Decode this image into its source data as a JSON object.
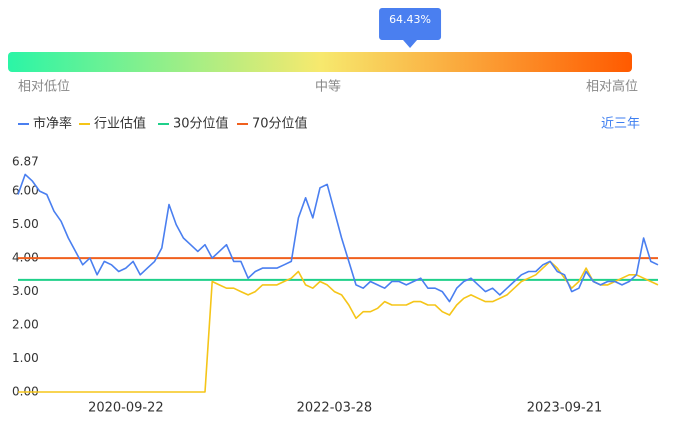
{
  "gauge": {
    "percentile": 64.43,
    "value_label": "64.43%",
    "colors": [
      "#2bf5a6",
      "#f7e96e",
      "#ff5a00"
    ],
    "marker_color": "#4a7ff0",
    "low_label": "相对低位",
    "mid_label": "中等",
    "high_label": "相对高位"
  },
  "chart_data": {
    "type": "line",
    "range_button": "近三年",
    "categories": [
      null,
      null,
      null,
      null,
      null,
      null,
      null,
      null,
      null,
      null,
      null,
      null,
      null,
      null,
      null,
      "2020-09-22",
      null,
      null,
      null,
      null,
      null,
      null,
      null,
      null,
      null,
      null,
      null,
      null,
      null,
      null,
      null,
      null,
      null,
      null,
      null,
      null,
      null,
      null,
      null,
      null,
      null,
      null,
      null,
      null,
      "2022-03-28",
      null,
      null,
      null,
      null,
      null,
      null,
      null,
      null,
      null,
      null,
      null,
      null,
      null,
      null,
      null,
      null,
      null,
      null,
      null,
      null,
      null,
      null,
      null,
      null,
      null,
      null,
      null,
      null,
      null,
      null,
      null,
      "2023-09-21",
      null,
      null,
      null,
      null,
      null,
      null,
      null,
      null,
      null,
      null,
      null,
      null,
      null
    ],
    "series": [
      {
        "name": "市净率",
        "color": "#4a7ff0",
        "values": [
          5.9,
          6.5,
          6.3,
          6.0,
          5.9,
          5.4,
          5.1,
          4.6,
          4.2,
          3.8,
          4.0,
          3.5,
          3.9,
          3.8,
          3.6,
          3.7,
          3.9,
          3.5,
          3.7,
          3.9,
          4.3,
          5.6,
          5.0,
          4.6,
          4.4,
          4.2,
          4.4,
          4.0,
          4.2,
          4.4,
          3.9,
          3.9,
          3.4,
          3.6,
          3.7,
          3.7,
          3.7,
          3.8,
          3.9,
          5.2,
          5.8,
          5.2,
          6.1,
          6.2,
          5.4,
          4.6,
          3.9,
          3.2,
          3.1,
          3.3,
          3.2,
          3.1,
          3.3,
          3.3,
          3.2,
          3.3,
          3.4,
          3.1,
          3.1,
          3.0,
          2.7,
          3.1,
          3.3,
          3.4,
          3.2,
          3.0,
          3.1,
          2.9,
          3.1,
          3.3,
          3.5,
          3.6,
          3.6,
          3.8,
          3.9,
          3.6,
          3.5,
          3.0,
          3.1,
          3.6,
          3.3,
          3.2,
          3.3,
          3.3,
          3.2,
          3.3,
          3.5,
          4.6,
          3.9,
          3.8
        ]
      },
      {
        "name": "行业估值",
        "color": "#f5c518",
        "values": [
          0,
          0,
          0,
          0,
          0,
          0,
          0,
          0,
          0,
          0,
          0,
          0,
          0,
          0,
          0,
          0,
          0,
          0,
          0,
          0,
          0,
          0,
          0,
          0,
          0,
          0,
          0,
          3.3,
          3.2,
          3.1,
          3.1,
          3.0,
          2.9,
          3.0,
          3.2,
          3.2,
          3.2,
          3.3,
          3.4,
          3.6,
          3.2,
          3.1,
          3.3,
          3.2,
          3.0,
          2.9,
          2.6,
          2.2,
          2.4,
          2.4,
          2.5,
          2.7,
          2.6,
          2.6,
          2.6,
          2.7,
          2.7,
          2.6,
          2.6,
          2.4,
          2.3,
          2.6,
          2.8,
          2.9,
          2.8,
          2.7,
          2.7,
          2.8,
          2.9,
          3.1,
          3.3,
          3.4,
          3.5,
          3.7,
          3.9,
          3.7,
          3.4,
          3.1,
          3.3,
          3.7,
          3.3,
          3.2,
          3.2,
          3.3,
          3.4,
          3.5,
          3.5,
          3.4,
          3.3,
          3.2
        ]
      }
    ],
    "thresholds": [
      {
        "name": "30分位值",
        "color": "#1fd08a",
        "value": 3.35
      },
      {
        "name": "70分位值",
        "color": "#f0601e",
        "value": 4.0
      }
    ],
    "ylim": [
      0,
      6.87
    ],
    "yticks": [
      {
        "value": 0,
        "label": "0.00"
      },
      {
        "value": 1,
        "label": "1.00"
      },
      {
        "value": 2,
        "label": "2.00"
      },
      {
        "value": 3,
        "label": "3.00"
      },
      {
        "value": 4,
        "label": "4.00"
      },
      {
        "value": 5,
        "label": "5.00"
      },
      {
        "value": 6,
        "label": "6.00"
      },
      {
        "value": 6.87,
        "label": "6.87"
      }
    ]
  }
}
